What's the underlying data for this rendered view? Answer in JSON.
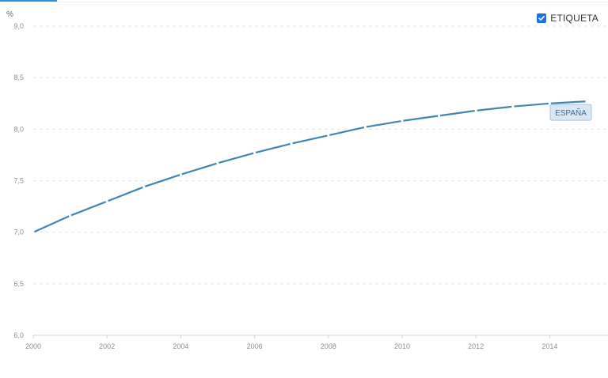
{
  "legend_toggle": {
    "label": "ETIQUETA",
    "checked": true
  },
  "chart_data": {
    "type": "line",
    "ylabel": "%",
    "ylim": [
      6.0,
      9.0
    ],
    "yticks": [
      "6,0",
      "6,5",
      "7,0",
      "7,5",
      "8,0",
      "8,5",
      "9,0"
    ],
    "xlim": [
      2000,
      2015
    ],
    "xticks": [
      "2000",
      "2002",
      "2004",
      "2006",
      "2008",
      "2010",
      "2012",
      "2014"
    ],
    "grid": true,
    "series": [
      {
        "name": "ESPAÑA",
        "color": "#3f86b5",
        "x": [
          2000,
          2001,
          2002,
          2003,
          2004,
          2005,
          2006,
          2007,
          2008,
          2009,
          2010,
          2011,
          2012,
          2013,
          2014,
          2015
        ],
        "values": [
          7.0,
          7.16,
          7.3,
          7.44,
          7.56,
          7.67,
          7.77,
          7.86,
          7.94,
          8.02,
          8.08,
          8.13,
          8.18,
          8.22,
          8.25,
          8.27
        ]
      }
    ]
  }
}
